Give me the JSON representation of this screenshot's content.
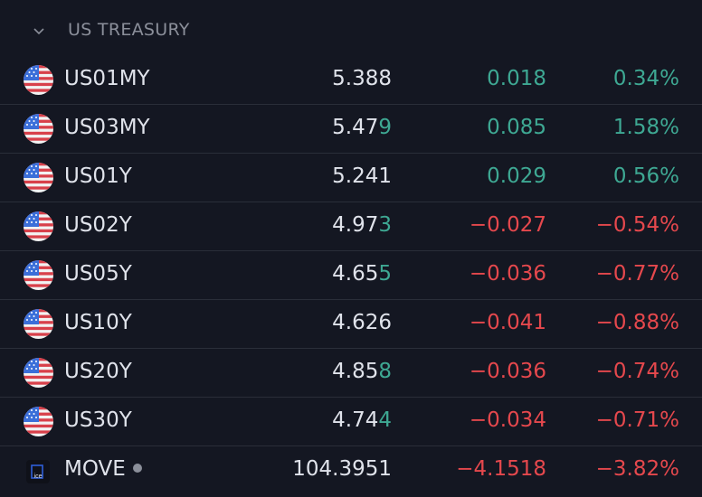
{
  "section": {
    "title": "US TREASURY"
  },
  "rows": [
    {
      "symbol": "US01MY",
      "price_main": "5.388",
      "price_tail": "",
      "change": "0.018",
      "change_pct": "0.34%",
      "direction": "up"
    },
    {
      "symbol": "US03MY",
      "price_main": "5.47",
      "price_tail": "9",
      "change": "0.085",
      "change_pct": "1.58%",
      "direction": "up"
    },
    {
      "symbol": "US01Y",
      "price_main": "5.241",
      "price_tail": "",
      "change": "0.029",
      "change_pct": "0.56%",
      "direction": "up"
    },
    {
      "symbol": "US02Y",
      "price_main": "4.97",
      "price_tail": "3",
      "change": "−0.027",
      "change_pct": "−0.54%",
      "direction": "down"
    },
    {
      "symbol": "US05Y",
      "price_main": "4.65",
      "price_tail": "5",
      "change": "−0.036",
      "change_pct": "−0.77%",
      "direction": "down"
    },
    {
      "symbol": "US10Y",
      "price_main": "4.626",
      "price_tail": "",
      "change": "−0.041",
      "change_pct": "−0.88%",
      "direction": "down"
    },
    {
      "symbol": "US20Y",
      "price_main": "4.85",
      "price_tail": "8",
      "change": "−0.036",
      "change_pct": "−0.74%",
      "direction": "down"
    },
    {
      "symbol": "US30Y",
      "price_main": "4.74",
      "price_tail": "4",
      "change": "−0.034",
      "change_pct": "−0.71%",
      "direction": "down"
    }
  ],
  "move": {
    "symbol": "MOVE",
    "icon_text": "ice",
    "price": "104.3951",
    "change": "−4.1518",
    "change_pct": "−3.82%"
  },
  "colors": {
    "up": "#3ea893",
    "down": "#e5484d",
    "background": "#141722"
  }
}
